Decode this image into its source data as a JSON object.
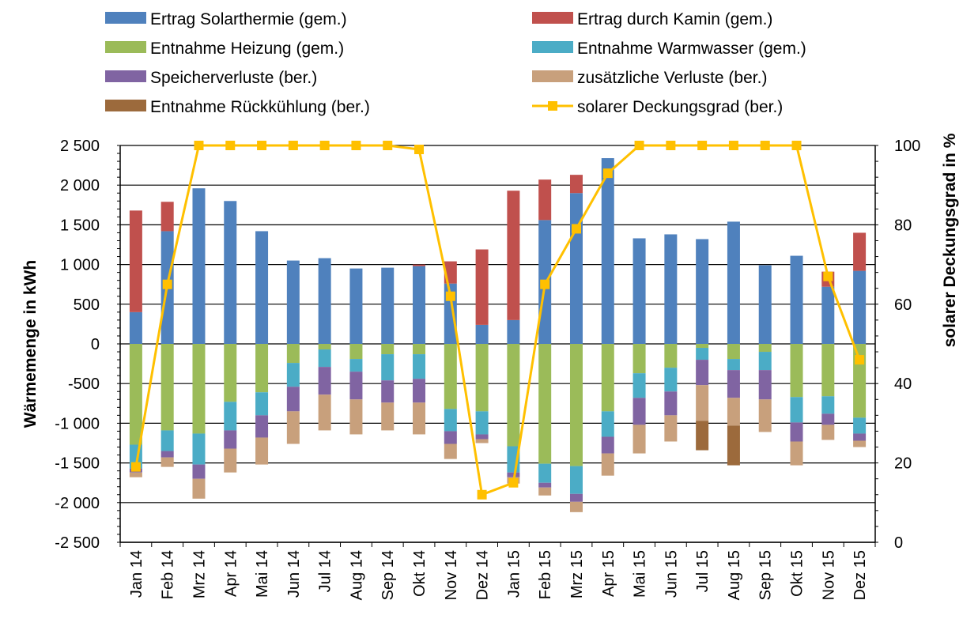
{
  "chart_data": {
    "type": "bar",
    "subtype": "stacked-bar-with-line",
    "categories": [
      "Jan 14",
      "Feb 14",
      "Mrz 14",
      "Apr 14",
      "Mai 14",
      "Jun 14",
      "Jul 14",
      "Aug 14",
      "Sep 14",
      "Okt 14",
      "Nov 14",
      "Dez 14",
      "Jan 15",
      "Feb 15",
      "Mrz 15",
      "Apr 15",
      "Mai 15",
      "Jun 15",
      "Jul 15",
      "Aug 15",
      "Sep 15",
      "Okt 15",
      "Nov 15",
      "Dez 15"
    ],
    "ylabel": "Wärmemenge in kWh",
    "y2label": "solarer Deckungsgrad in %",
    "ylim": [
      -2500,
      2500
    ],
    "y2lim": [
      0,
      100
    ],
    "yticks": [
      "2 500",
      "2 000",
      "1 500",
      "1 000",
      "500",
      "0",
      "-500",
      "-1 000",
      "-1 500",
      "-2 000",
      "-2 500"
    ],
    "y2ticks": [
      "100",
      "80",
      "60",
      "40",
      "20",
      "0"
    ],
    "grid": "horizontal",
    "legend_position": "top",
    "series": [
      {
        "name": "Ertrag Solarthermie (gem.)",
        "color": "#4f81bd",
        "sign": "positive",
        "values": [
          400,
          1420,
          1960,
          1800,
          1420,
          1050,
          1080,
          950,
          960,
          980,
          760,
          240,
          300,
          1560,
          1900,
          2340,
          1330,
          1380,
          1320,
          1540,
          990,
          1110,
          720,
          920
        ]
      },
      {
        "name": "Ertrag durch Kamin (gem.)",
        "color": "#c0504d",
        "sign": "positive",
        "values": [
          1280,
          370,
          0,
          0,
          0,
          0,
          0,
          0,
          0,
          20,
          280,
          950,
          1630,
          510,
          230,
          0,
          0,
          0,
          0,
          0,
          0,
          0,
          190,
          480
        ]
      },
      {
        "name": "Entnahme Heizung (gem.)",
        "color": "#9bbb59",
        "sign": "negative",
        "values": [
          1270,
          1090,
          1130,
          730,
          610,
          240,
          70,
          190,
          130,
          130,
          820,
          850,
          1290,
          1510,
          1540,
          850,
          370,
          300,
          50,
          190,
          100,
          670,
          660,
          930
        ]
      },
      {
        "name": "Entnahme Warmwasser (gem.)",
        "color": "#4bacc6",
        "sign": "negative",
        "values": [
          300,
          260,
          390,
          360,
          290,
          300,
          220,
          160,
          330,
          310,
          280,
          290,
          330,
          240,
          350,
          320,
          310,
          300,
          150,
          140,
          230,
          320,
          220,
          200
        ]
      },
      {
        "name": "Speicherverluste (ber.)",
        "color": "#8064a2",
        "sign": "negative",
        "values": [
          50,
          80,
          180,
          230,
          280,
          310,
          350,
          350,
          280,
          300,
          160,
          60,
          60,
          60,
          100,
          210,
          340,
          300,
          320,
          350,
          370,
          240,
          140,
          90
        ]
      },
      {
        "name": "zusätzliche Verluste (ber.)",
        "color": "#c8a07c",
        "sign": "negative",
        "values": [
          60,
          120,
          250,
          300,
          340,
          410,
          450,
          440,
          350,
          400,
          190,
          50,
          80,
          100,
          130,
          280,
          360,
          330,
          450,
          350,
          410,
          300,
          190,
          80
        ]
      },
      {
        "name": "Entnahme Rückkühlung (ber.)",
        "color": "#9c6a3c",
        "sign": "negative",
        "values": [
          0,
          0,
          0,
          0,
          0,
          0,
          0,
          0,
          0,
          0,
          0,
          0,
          0,
          0,
          0,
          0,
          0,
          0,
          370,
          500,
          0,
          0,
          0,
          0
        ]
      },
      {
        "name": "solarer Deckungsgrad (ber.)",
        "color": "#ffc000",
        "axis": "secondary",
        "type": "line",
        "marker": "square",
        "values": [
          19,
          65,
          100,
          100,
          100,
          100,
          100,
          100,
          100,
          99,
          62,
          12,
          15,
          65,
          79,
          93,
          100,
          100,
          100,
          100,
          100,
          100,
          67,
          46
        ]
      }
    ]
  }
}
